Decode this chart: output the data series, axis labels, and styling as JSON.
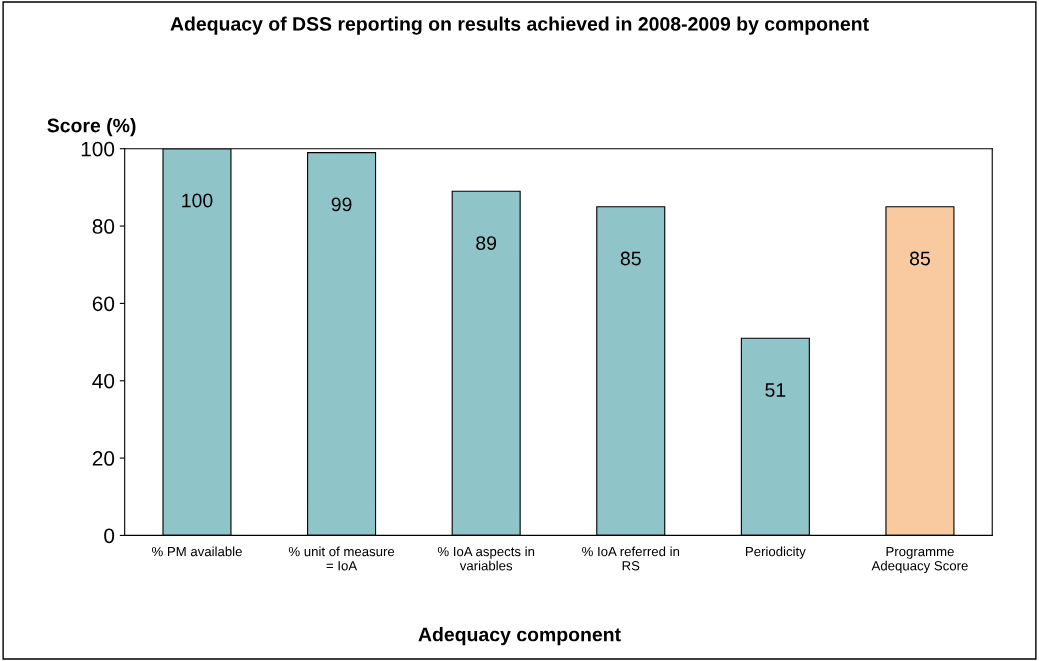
{
  "chart_data": {
    "type": "bar",
    "title": "Adequacy of DSS reporting on results achieved in 2008-2009 by component",
    "ylabel": "Score (%)",
    "xlabel": "Adequacy component",
    "categories": [
      "% PM available",
      "% unit of measure\n= IoA",
      "% IoA aspects in\nvariables",
      "% IoA referred in\nRS",
      "Periodicity",
      "Programme\nAdequacy Score"
    ],
    "values": [
      100,
      99,
      89,
      85,
      51,
      85
    ],
    "colors": [
      "#8fc4c8",
      "#8fc4c8",
      "#8fc4c8",
      "#8fc4c8",
      "#8fc4c8",
      "#f9c9a0"
    ],
    "ylim": [
      0,
      100
    ],
    "yticks": [
      0,
      20,
      40,
      60,
      80,
      100
    ],
    "grid": false,
    "data_labels": true
  }
}
